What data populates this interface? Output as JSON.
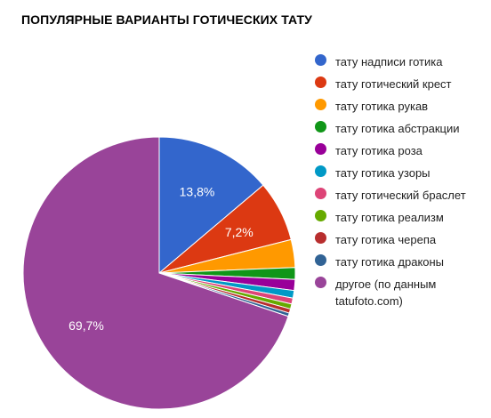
{
  "chart_data": {
    "type": "pie",
    "title": "ПОПУЛЯРНЫЕ ВАРИАНТЫ ГОТИЧЕСКИХ ТАТУ",
    "legend_position": "right",
    "slices": [
      {
        "name": "тату надписи готика",
        "value": 13.8,
        "label": "13,8%",
        "color": "#3366cc"
      },
      {
        "name": "тату готический крест",
        "value": 7.2,
        "label": "7,2%",
        "color": "#dc3912"
      },
      {
        "name": "тату готика рукав",
        "value": 3.3,
        "label": "",
        "color": "#ff9900"
      },
      {
        "name": "тату готика абстракции",
        "value": 1.4,
        "label": "",
        "color": "#109618"
      },
      {
        "name": "тату готика роза",
        "value": 1.3,
        "label": "",
        "color": "#990099"
      },
      {
        "name": "тату готика узоры",
        "value": 0.9,
        "label": "",
        "color": "#0099c6"
      },
      {
        "name": "тату готический браслет",
        "value": 0.7,
        "label": "",
        "color": "#dd4477"
      },
      {
        "name": "тату готика реализм",
        "value": 0.6,
        "label": "",
        "color": "#66aa00"
      },
      {
        "name": "тату готика черепа",
        "value": 0.5,
        "label": "",
        "color": "#b82e2e"
      },
      {
        "name": "тату готика драконы",
        "value": 0.4,
        "label": "",
        "color": "#316395"
      },
      {
        "name": "другое (по данным tatufoto.com)",
        "value": 69.7,
        "label": "69,7%",
        "color": "#994499"
      }
    ]
  }
}
